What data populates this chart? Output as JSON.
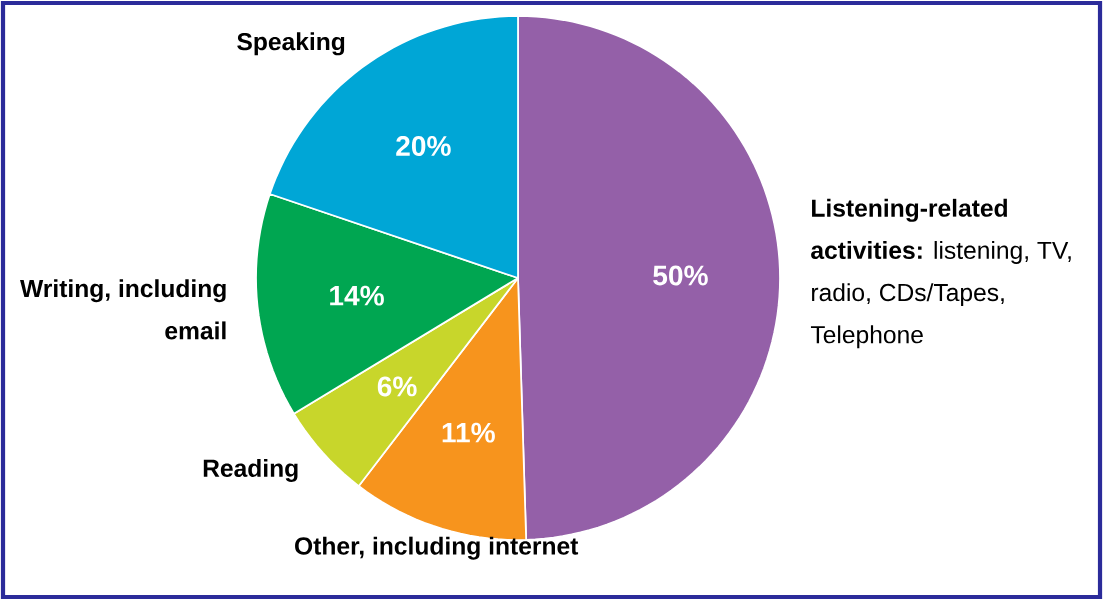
{
  "chart_data": {
    "type": "pie",
    "categories": [
      "**Listening-related activities:** listening, TV, radio, CDs/Tapes, Telephone",
      "Other, including internet",
      "Reading",
      "Writing, including email",
      "Speaking"
    ],
    "values": [
      50,
      11,
      6,
      14,
      20
    ],
    "value_labels": [
      "50%",
      "11%",
      "6%",
      "14%",
      "20%"
    ],
    "colors": [
      "#9460a8",
      "#f7941d",
      "#c8d62b",
      "#00a651",
      "#00a6d6"
    ]
  }
}
